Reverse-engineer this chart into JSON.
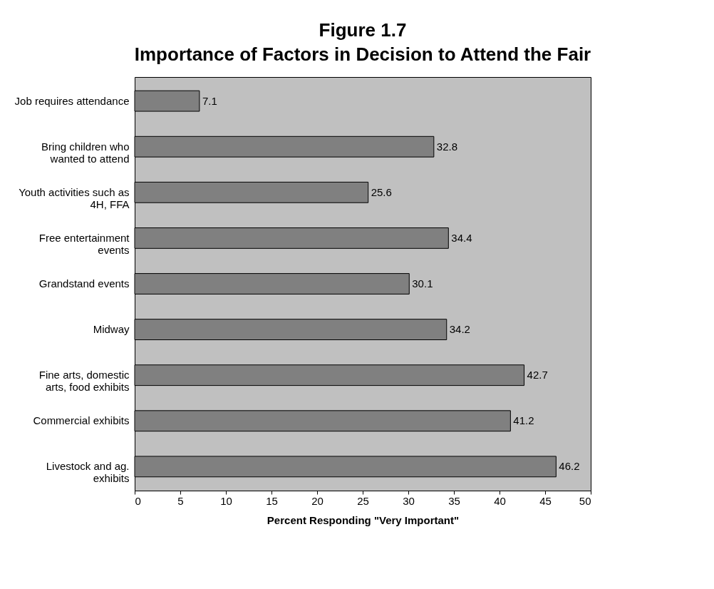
{
  "chart_data": {
    "type": "bar",
    "orientation": "horizontal",
    "title": "Figure 1.7\nImportance of Factors in Decision to Attend the Fair",
    "xlabel": "Percent Responding \"Very Important\"",
    "categories": [
      "Job requires attendance",
      "Bring children who\nwanted to attend",
      "Youth activities such as\n4H, FFA",
      "Free entertainment\nevents",
      "Grandstand events",
      "Midway",
      "Fine arts, domestic\narts, food exhibits",
      "Commercial exhibits",
      "Livestock and ag.\nexhibits"
    ],
    "values": [
      7.1,
      32.8,
      25.6,
      34.4,
      30.1,
      34.2,
      42.7,
      41.2,
      46.2
    ],
    "color": "#808080",
    "xlim": [
      0,
      50
    ],
    "xticks": [
      0,
      5,
      10,
      15,
      20,
      25,
      30,
      35,
      40,
      45,
      50
    ],
    "grid": false,
    "data_labels": true
  }
}
